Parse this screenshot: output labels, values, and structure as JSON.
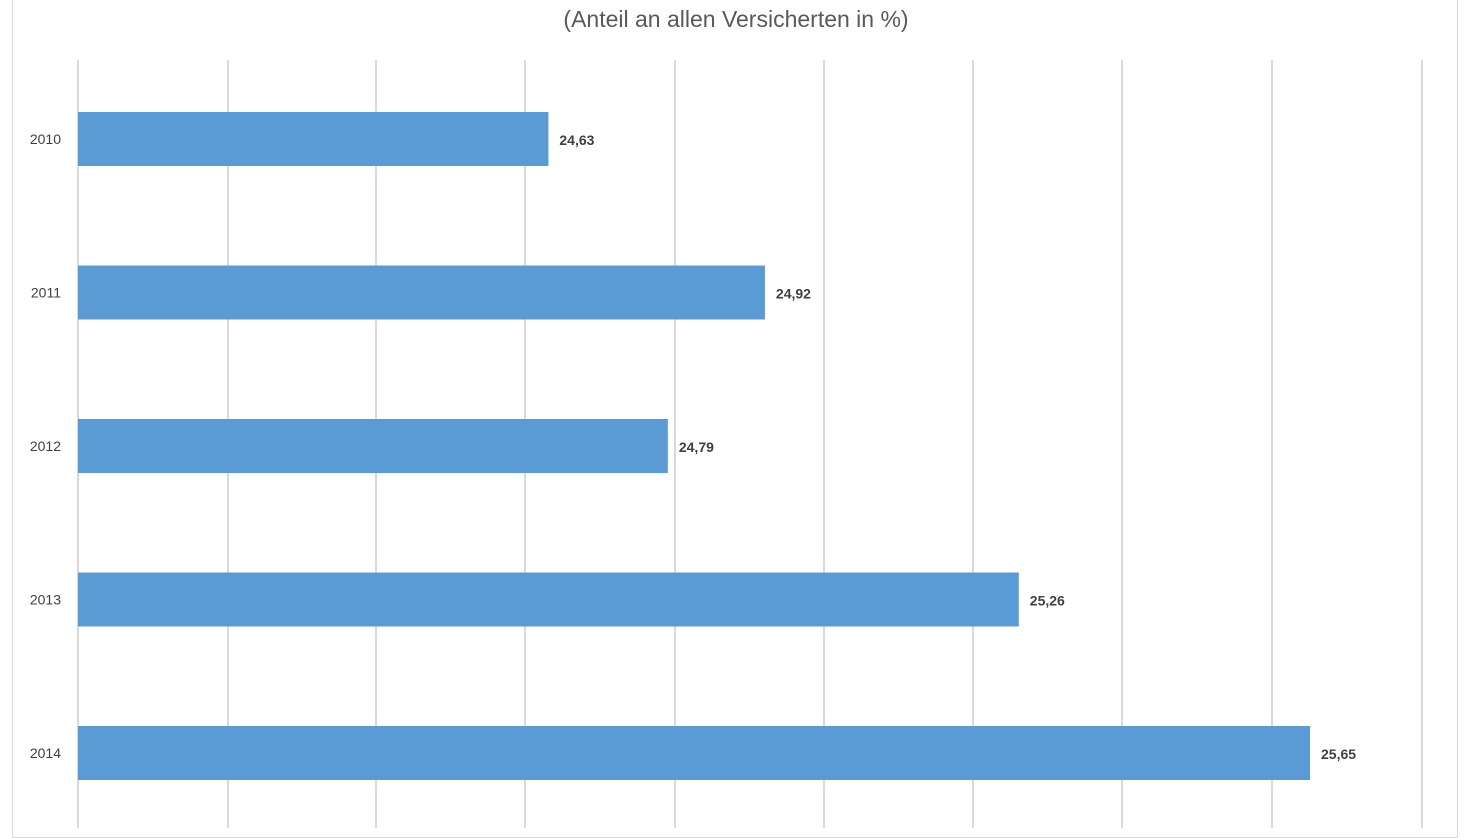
{
  "chart_data": {
    "type": "bar",
    "orientation": "horizontal",
    "title": "",
    "subtitle": "(Anteil an allen Versicherten in %)",
    "categories": [
      "2010",
      "2011",
      "2012",
      "2013",
      "2014"
    ],
    "values": [
      24.63,
      24.92,
      24.79,
      25.26,
      25.65
    ],
    "value_labels": [
      "24,63",
      "24,92",
      "24,79",
      "25,26",
      "25,65"
    ],
    "xlim": [
      24.0,
      25.8
    ],
    "grid": true,
    "legend": "none",
    "colors": {
      "bar": "#5b9bd5",
      "grid": "#d9d9d9",
      "text": "#404040",
      "title": "#595959"
    }
  }
}
